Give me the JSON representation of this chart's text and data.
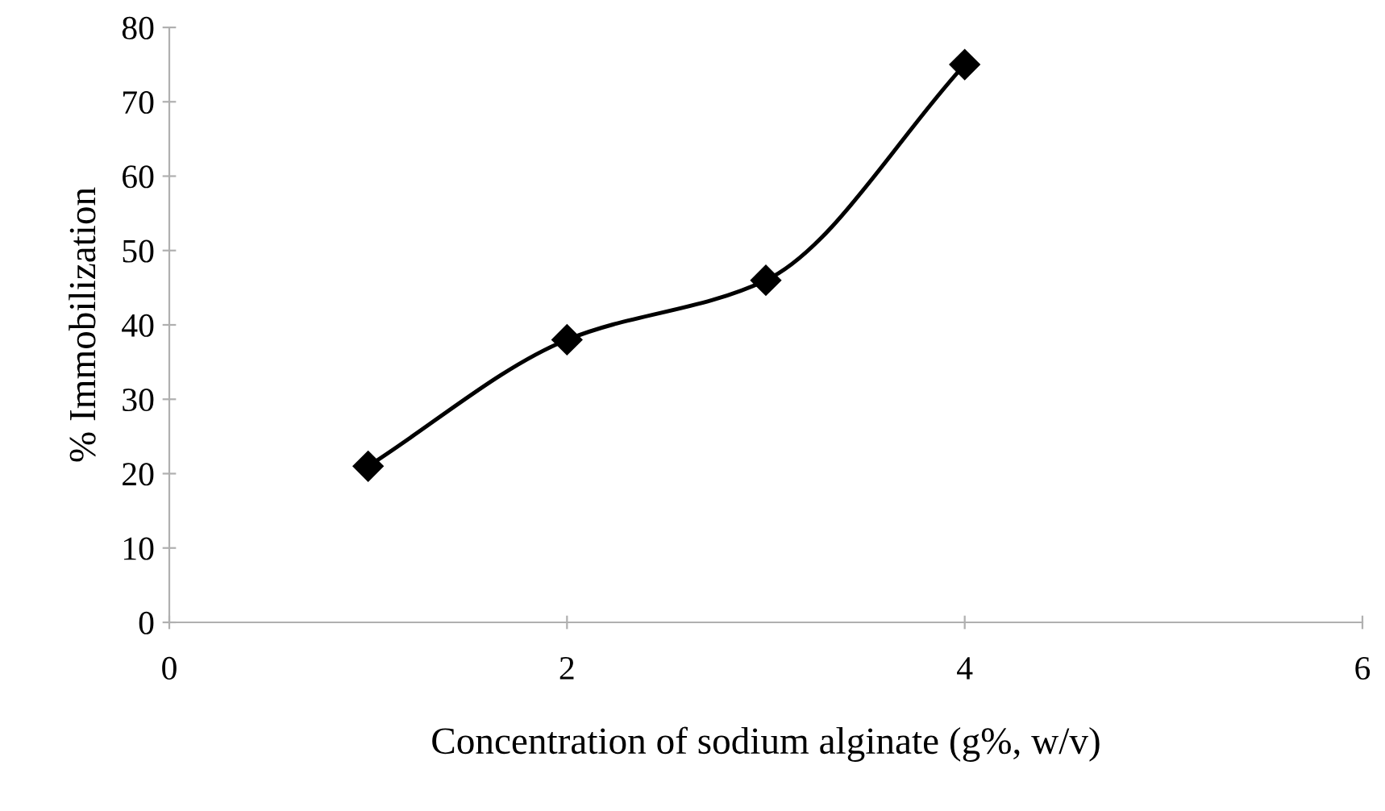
{
  "chart_data": {
    "type": "line",
    "xlabel": "Concentration of sodium alginate (g%, w/v)",
    "ylabel": "% Immobilization",
    "x": [
      1,
      2,
      3,
      4
    ],
    "series": [
      {
        "color": "#000000",
        "values": [
          21,
          38,
          46,
          75
        ]
      }
    ],
    "xlim": [
      0,
      6
    ],
    "xticks": [
      0,
      2,
      4,
      6
    ],
    "ylim": [
      0,
      80
    ],
    "yticks": [
      0,
      10,
      20,
      30,
      40,
      50,
      60,
      70,
      80
    ],
    "marker": "diamond",
    "line_style": "solid",
    "grid": false,
    "legend": false
  }
}
